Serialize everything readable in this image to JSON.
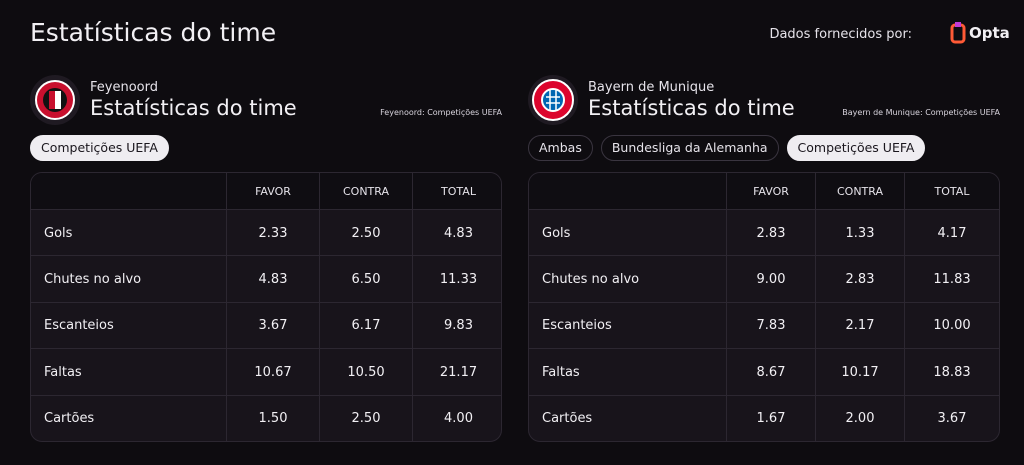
{
  "header": {
    "title": "Estatísticas do time",
    "credit": "Dados fornecidos por:",
    "brand": "Opta"
  },
  "panels": [
    {
      "team": "Feyenoord",
      "title": "Estatísticas do time",
      "source": "Feyenoord: Competições UEFA",
      "filters": [
        "Competições UEFA"
      ],
      "table": {
        "columns": [
          "FAVOR",
          "CONTRA",
          "TOTAL"
        ],
        "rows": [
          [
            "Gols",
            "2.33",
            "2.50",
            "4.83"
          ],
          [
            "Chutes no alvo",
            "4.83",
            "6.50",
            "11.33"
          ],
          [
            "Escanteios",
            "3.67",
            "6.17",
            "9.83"
          ],
          [
            "Faltas",
            "10.67",
            "10.50",
            "21.17"
          ],
          [
            "Cartões",
            "1.50",
            "2.50",
            "4.00"
          ]
        ]
      }
    },
    {
      "team": "Bayern de Munique",
      "title": "Estatísticas do time",
      "source": "Bayern de Munique: Competições UEFA",
      "filters": [
        "Ambas",
        "Bundesliga da Alemanha",
        "Competições UEFA"
      ],
      "table": {
        "columns": [
          "FAVOR",
          "CONTRA",
          "TOTAL"
        ],
        "rows": [
          [
            "Gols",
            "2.83",
            "1.33",
            "4.17"
          ],
          [
            "Chutes no alvo",
            "9.00",
            "2.83",
            "11.83"
          ],
          [
            "Escanteios",
            "7.83",
            "2.17",
            "10.00"
          ],
          [
            "Faltas",
            "8.67",
            "10.17",
            "18.83"
          ],
          [
            "Cartões",
            "1.67",
            "2.00",
            "3.67"
          ]
        ]
      }
    }
  ]
}
